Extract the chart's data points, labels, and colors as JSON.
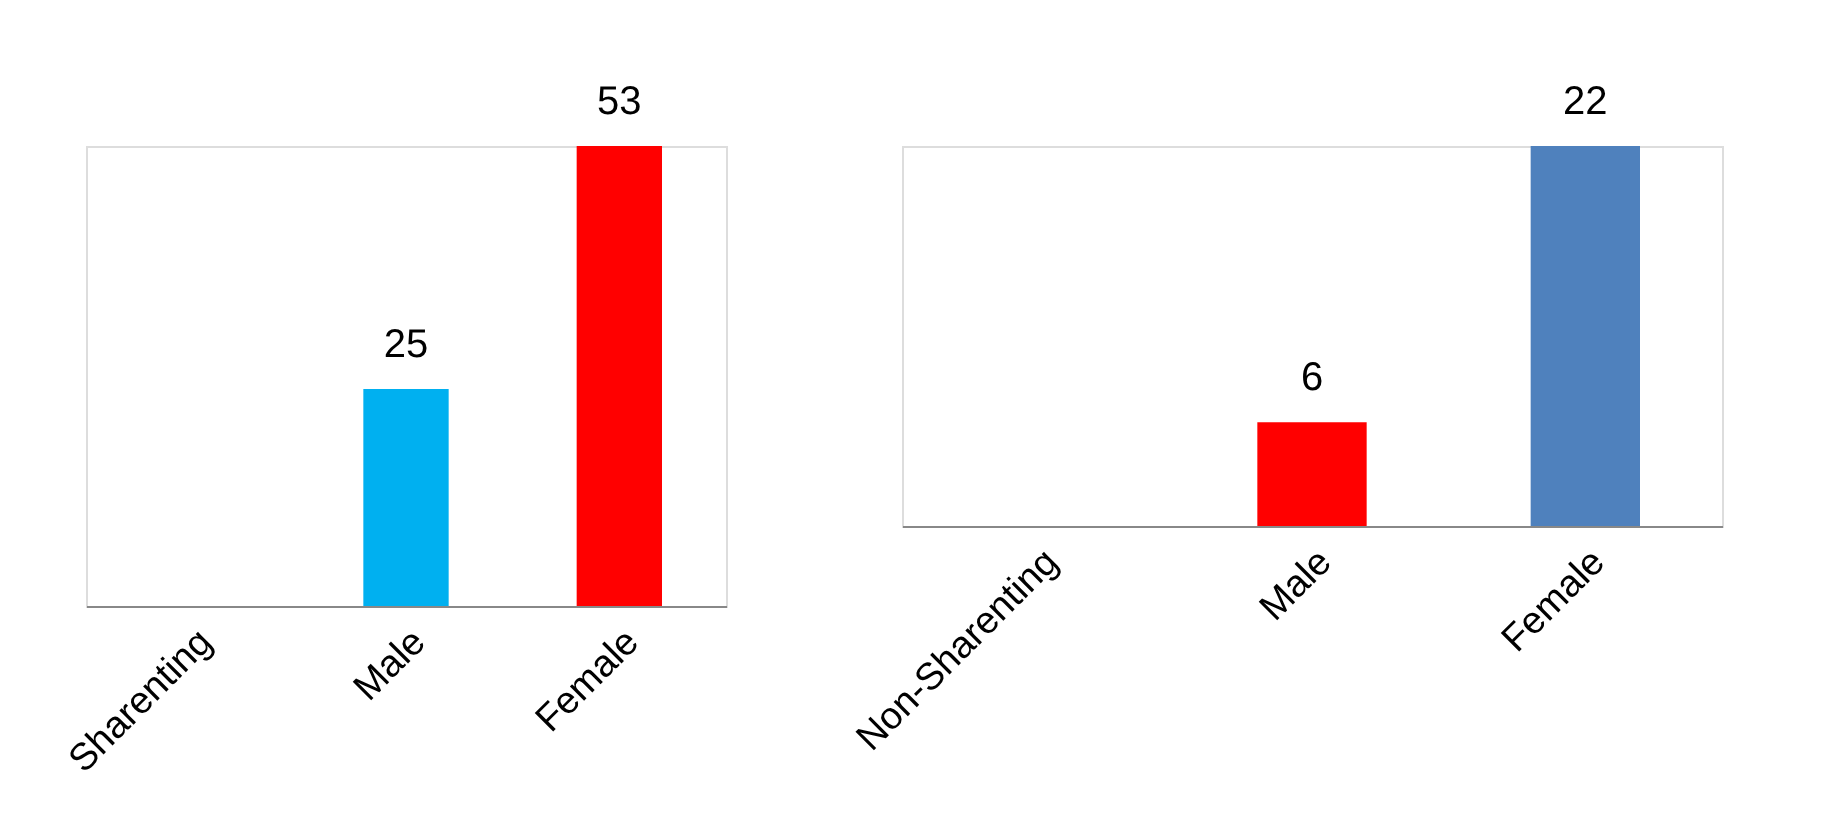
{
  "chart_data": [
    {
      "type": "bar",
      "categories": [
        "Sharenting",
        "Male",
        "Female"
      ],
      "values": [
        null,
        25,
        53
      ],
      "colors": [
        "#00b0f0",
        "#00b0f0",
        "#ff0000"
      ],
      "data_labels": true
    },
    {
      "type": "bar",
      "categories": [
        "Non-Sharenting",
        "Male",
        "Female"
      ],
      "values": [
        null,
        6,
        22
      ],
      "colors": [
        "#ff0000",
        "#ff0000",
        "#4f81bd"
      ],
      "data_labels": true
    }
  ]
}
